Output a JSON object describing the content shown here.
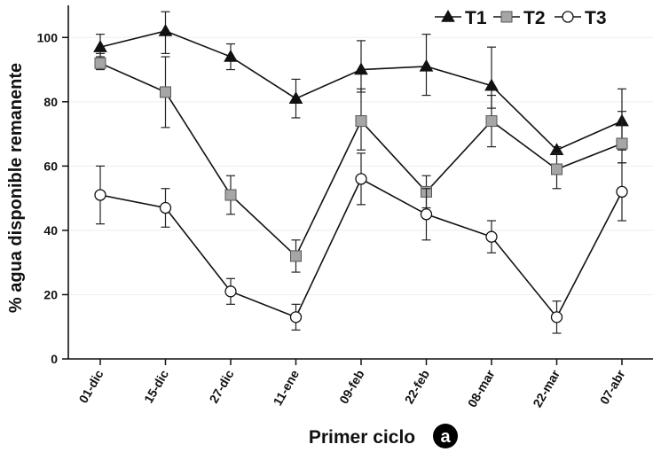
{
  "chart_data": {
    "type": "line",
    "xlabel": "Primer ciclo",
    "ylabel": "% agua disponible remanente",
    "panel_label": "a",
    "ylim": [
      0,
      110
    ],
    "yticks": [
      0,
      20,
      40,
      60,
      80,
      100
    ],
    "grid": "horizontal",
    "legend_position": "top-right",
    "categories": [
      "01-dic",
      "15-dic",
      "27-dic",
      "11-ene",
      "09-feb",
      "22-feb",
      "08-mar",
      "22-mar",
      "07-abr"
    ],
    "series": [
      {
        "name": "T1",
        "marker": "triangle",
        "marker_color": "#111111",
        "values": [
          97,
          102,
          94,
          81,
          90,
          91,
          85,
          65,
          74
        ],
        "err_low": [
          3,
          7,
          4,
          6,
          7,
          9,
          7,
          1,
          9
        ],
        "err_high": [
          4,
          6,
          4,
          6,
          9,
          10,
          12,
          1,
          10
        ]
      },
      {
        "name": "T2",
        "marker": "square",
        "marker_color": "#a6a6a6",
        "values": [
          92,
          83,
          51,
          32,
          74,
          52,
          74,
          59,
          67
        ],
        "err_low": [
          2,
          11,
          6,
          5,
          9,
          5,
          8,
          6,
          6
        ],
        "err_high": [
          3,
          11,
          6,
          5,
          10,
          5,
          8,
          5,
          10
        ]
      },
      {
        "name": "T3",
        "marker": "circle",
        "marker_color": "#ffffff",
        "values": [
          51,
          47,
          21,
          13,
          56,
          45,
          38,
          13,
          52
        ],
        "err_low": [
          9,
          6,
          4,
          4,
          8,
          8,
          5,
          5,
          9
        ],
        "err_high": [
          9,
          6,
          4,
          4,
          8,
          8,
          5,
          5,
          9
        ]
      }
    ]
  }
}
